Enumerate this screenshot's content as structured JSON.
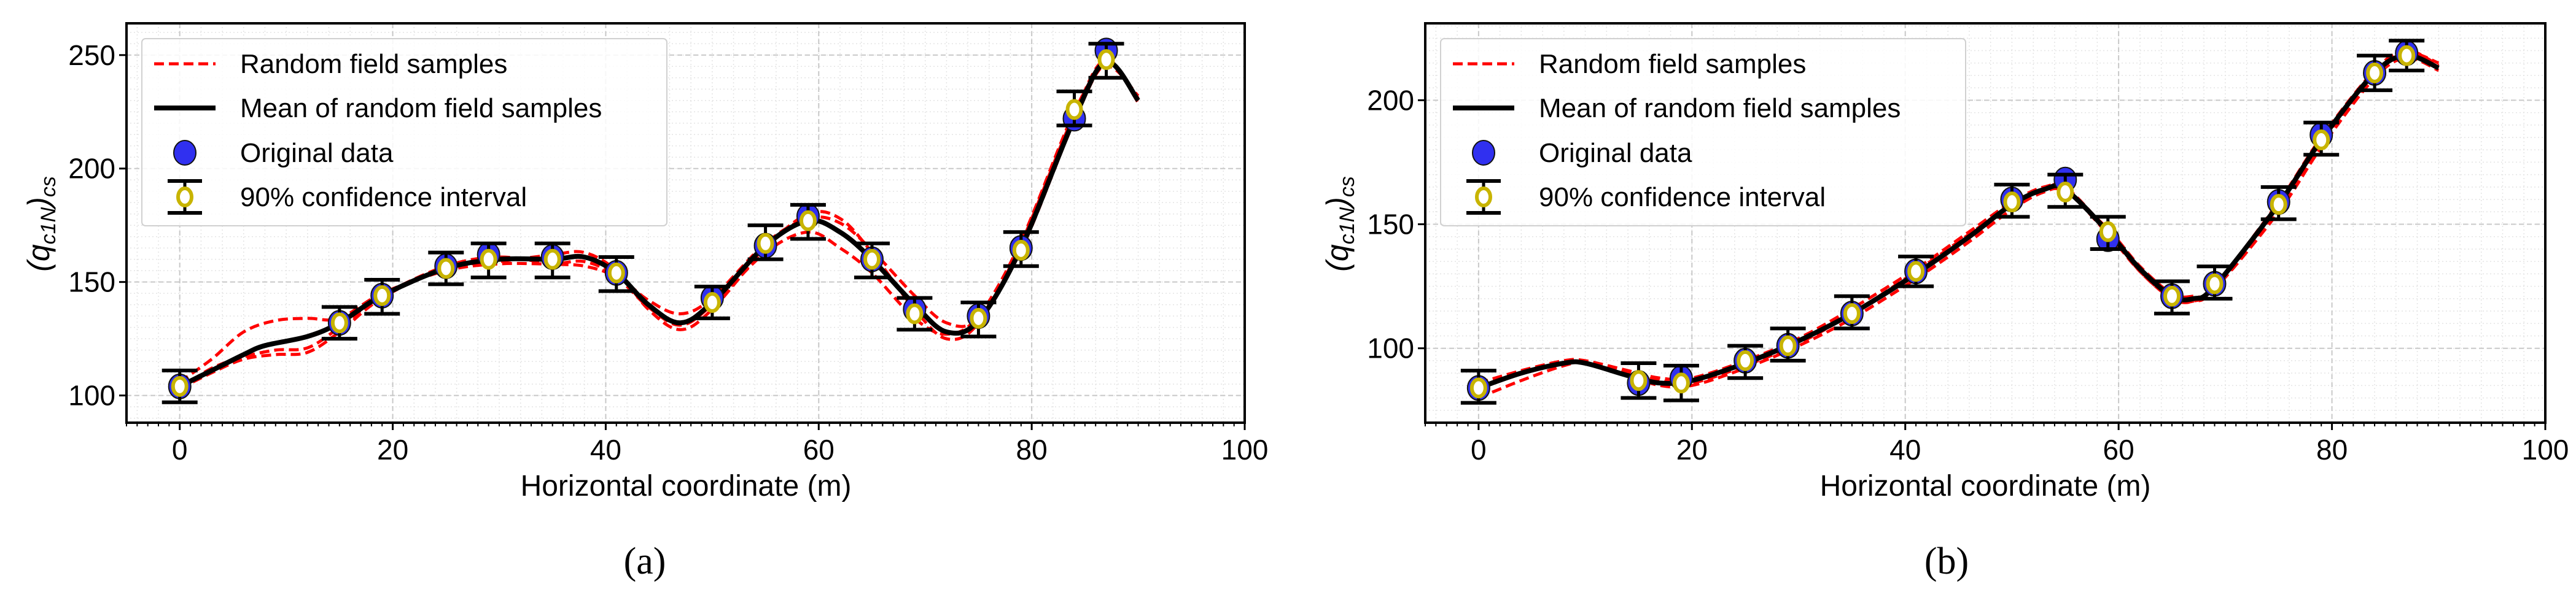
{
  "colors": {
    "samples": "#ff0000",
    "mean": "#000000",
    "original": "#3030f0",
    "ci_marker": "#c8b400",
    "grid": "#c8c8c8"
  },
  "chart_data": [
    {
      "type": "line",
      "panel_label": "(a)",
      "xlabel": "Horizontal coordinate (m)",
      "ylabel": {
        "open": "(",
        "base": "q",
        "sub": "c1N",
        "close": ")",
        "outer_sub": "cs"
      },
      "xlim": [
        -5,
        100
      ],
      "ylim": [
        88,
        264
      ],
      "xticks": [
        0,
        20,
        40,
        60,
        80,
        100
      ],
      "yticks": [
        100,
        150,
        200,
        250
      ],
      "grid": true,
      "legend_placement": "top-left",
      "legend": [
        "Random field samples",
        "Mean of random field samples",
        "Original data",
        "90% confidence interval"
      ],
      "original_data": {
        "x": [
          0,
          15,
          19,
          25,
          29,
          35,
          41,
          50,
          55,
          59,
          65,
          69,
          75,
          79,
          84,
          87
        ],
        "y": [
          104,
          132,
          144,
          157,
          162,
          161,
          154,
          143,
          166,
          179,
          160,
          138,
          135,
          165,
          222,
          252
        ]
      },
      "confidence_interval": {
        "x": [
          0,
          15,
          19,
          25,
          29,
          35,
          41,
          50,
          55,
          59,
          65,
          69,
          75,
          79,
          84,
          87
        ],
        "center": [
          104,
          132,
          144,
          156,
          160,
          160,
          154,
          141,
          167,
          177,
          160,
          136,
          134,
          164,
          226,
          248
        ],
        "lower": [
          97,
          125,
          136,
          149,
          152,
          152,
          146,
          134,
          160,
          169,
          152,
          129,
          126,
          157,
          219,
          240
        ],
        "upper": [
          111,
          139,
          151,
          163,
          167,
          167,
          161,
          148,
          175,
          184,
          167,
          143,
          141,
          172,
          234,
          255
        ]
      },
      "mean": {
        "x": [
          0,
          3,
          6,
          8,
          12,
          15,
          19,
          25,
          30,
          35,
          38,
          41,
          44,
          47,
          50,
          55,
          59,
          62,
          65,
          69,
          72,
          75,
          79,
          84,
          87,
          90
        ],
        "y": [
          104,
          111,
          118,
          122,
          126,
          132,
          144,
          156,
          160,
          160,
          161,
          154,
          140,
          132,
          141,
          166,
          177,
          172,
          160,
          140,
          128,
          133,
          165,
          222,
          247,
          230
        ]
      },
      "samples": [
        {
          "x": [
            0,
            3,
            6,
            9,
            12,
            15,
            19,
            25,
            30,
            35,
            38,
            41,
            44,
            47,
            50,
            55,
            59,
            62,
            65,
            69,
            72,
            75,
            79,
            84,
            87,
            90
          ],
          "y": [
            106,
            116,
            128,
            133,
            134,
            134,
            145,
            155,
            158,
            158,
            159,
            153,
            142,
            136,
            143,
            167,
            178,
            176,
            164,
            144,
            132,
            134,
            164,
            221,
            246,
            231
          ]
        },
        {
          "x": [
            0,
            3,
            6,
            9,
            12,
            15,
            19,
            25,
            30,
            35,
            38,
            41,
            44,
            47,
            50,
            55,
            59,
            62,
            65,
            69,
            72,
            75,
            79,
            84,
            87,
            90
          ],
          "y": [
            103,
            110,
            116,
            118,
            119,
            128,
            143,
            156,
            159,
            162,
            163,
            155,
            138,
            129,
            138,
            165,
            180,
            178,
            163,
            138,
            125,
            132,
            167,
            224,
            248,
            229
          ]
        },
        {
          "x": [
            0,
            3,
            6,
            9,
            12,
            15,
            19,
            25,
            30,
            35,
            38,
            41,
            44,
            47,
            50,
            55,
            59,
            62,
            65,
            69,
            72,
            75,
            79,
            84,
            87,
            90
          ],
          "y": [
            103,
            112,
            117,
            120,
            121,
            130,
            144,
            157,
            161,
            158,
            157,
            152,
            139,
            131,
            140,
            163,
            172,
            165,
            154,
            134,
            127,
            135,
            168,
            225,
            245,
            232
          ]
        }
      ]
    },
    {
      "type": "line",
      "panel_label": "(b)",
      "xlabel": "Horizontal coordinate (m)",
      "ylabel": {
        "open": "(",
        "base": "q",
        "sub": "c1N",
        "close": ")",
        "outer_sub": "cs"
      },
      "xlim": [
        -5,
        100
      ],
      "ylim": [
        70,
        231
      ],
      "xticks": [
        0,
        20,
        40,
        60,
        80,
        100
      ],
      "yticks": [
        100,
        150,
        200
      ],
      "grid": true,
      "legend_placement": "top-left",
      "legend": [
        "Random field samples",
        "Mean of random field samples",
        "Original data",
        "90% confidence interval"
      ],
      "original_data": {
        "x": [
          0,
          15,
          19,
          25,
          29,
          35,
          41,
          50,
          55,
          59,
          65,
          69,
          75,
          79,
          84,
          87
        ],
        "y": [
          84,
          86,
          88,
          95,
          101,
          114,
          131,
          160,
          168,
          144,
          121,
          126,
          159,
          186,
          211,
          219
        ]
      },
      "confidence_interval": {
        "x": [
          0,
          15,
          19,
          25,
          29,
          35,
          41,
          50,
          55,
          59,
          65,
          69,
          75,
          79,
          84,
          87
        ],
        "center": [
          84,
          87,
          86,
          95,
          101,
          114,
          131,
          159,
          163,
          147,
          121,
          126,
          158,
          184,
          211,
          218
        ],
        "lower": [
          78,
          80,
          79,
          88,
          95,
          108,
          125,
          153,
          157,
          140,
          114,
          120,
          152,
          178,
          204,
          212
        ],
        "upper": [
          91,
          94,
          93,
          101,
          108,
          121,
          137,
          166,
          170,
          153,
          127,
          133,
          165,
          191,
          218,
          224
        ]
      },
      "mean": {
        "x": [
          0,
          4,
          8,
          10,
          14,
          17,
          20,
          25,
          30,
          35,
          41,
          46,
          50,
          53,
          55,
          59,
          62,
          65,
          67,
          69,
          75,
          79,
          84,
          87,
          90
        ],
        "y": [
          84,
          90,
          94,
          94,
          89,
          86,
          87,
          94,
          103,
          114,
          130,
          145,
          158,
          164,
          164,
          147,
          132,
          121,
          120,
          125,
          158,
          184,
          211,
          218,
          213
        ]
      },
      "samples": [
        {
          "x": [
            0,
            4,
            8,
            10,
            14,
            17,
            20,
            25,
            30,
            35,
            41,
            46,
            50,
            53,
            55,
            59,
            62,
            65,
            67,
            69,
            75,
            79,
            84,
            87,
            90
          ],
          "y": [
            86,
            91,
            95,
            95,
            91,
            88,
            88,
            95,
            104,
            116,
            132,
            147,
            159,
            165,
            164,
            146,
            131,
            120,
            119,
            124,
            157,
            183,
            210,
            219,
            215
          ]
        },
        {
          "x": [
            0,
            4,
            8,
            10,
            14,
            17,
            20,
            25,
            30,
            35,
            41,
            46,
            50,
            53,
            55,
            59,
            62,
            65,
            67,
            69,
            75,
            79,
            84,
            87,
            90
          ],
          "y": [
            80,
            87,
            93,
            94,
            89,
            85,
            85,
            92,
            101,
            112,
            128,
            143,
            156,
            163,
            163,
            148,
            133,
            122,
            121,
            124,
            155,
            181,
            209,
            217,
            212
          ]
        },
        {
          "x": [
            0,
            4,
            8,
            10,
            14,
            17,
            20,
            25,
            30,
            35,
            41,
            46,
            50,
            53,
            55,
            59,
            62,
            65,
            67,
            69,
            75,
            79,
            84,
            87,
            90
          ],
          "y": [
            84,
            90,
            94,
            94,
            90,
            87,
            86,
            93,
            102,
            114,
            131,
            146,
            158,
            164,
            165,
            147,
            131,
            120,
            119,
            125,
            159,
            185,
            212,
            220,
            214
          ]
        }
      ]
    }
  ]
}
